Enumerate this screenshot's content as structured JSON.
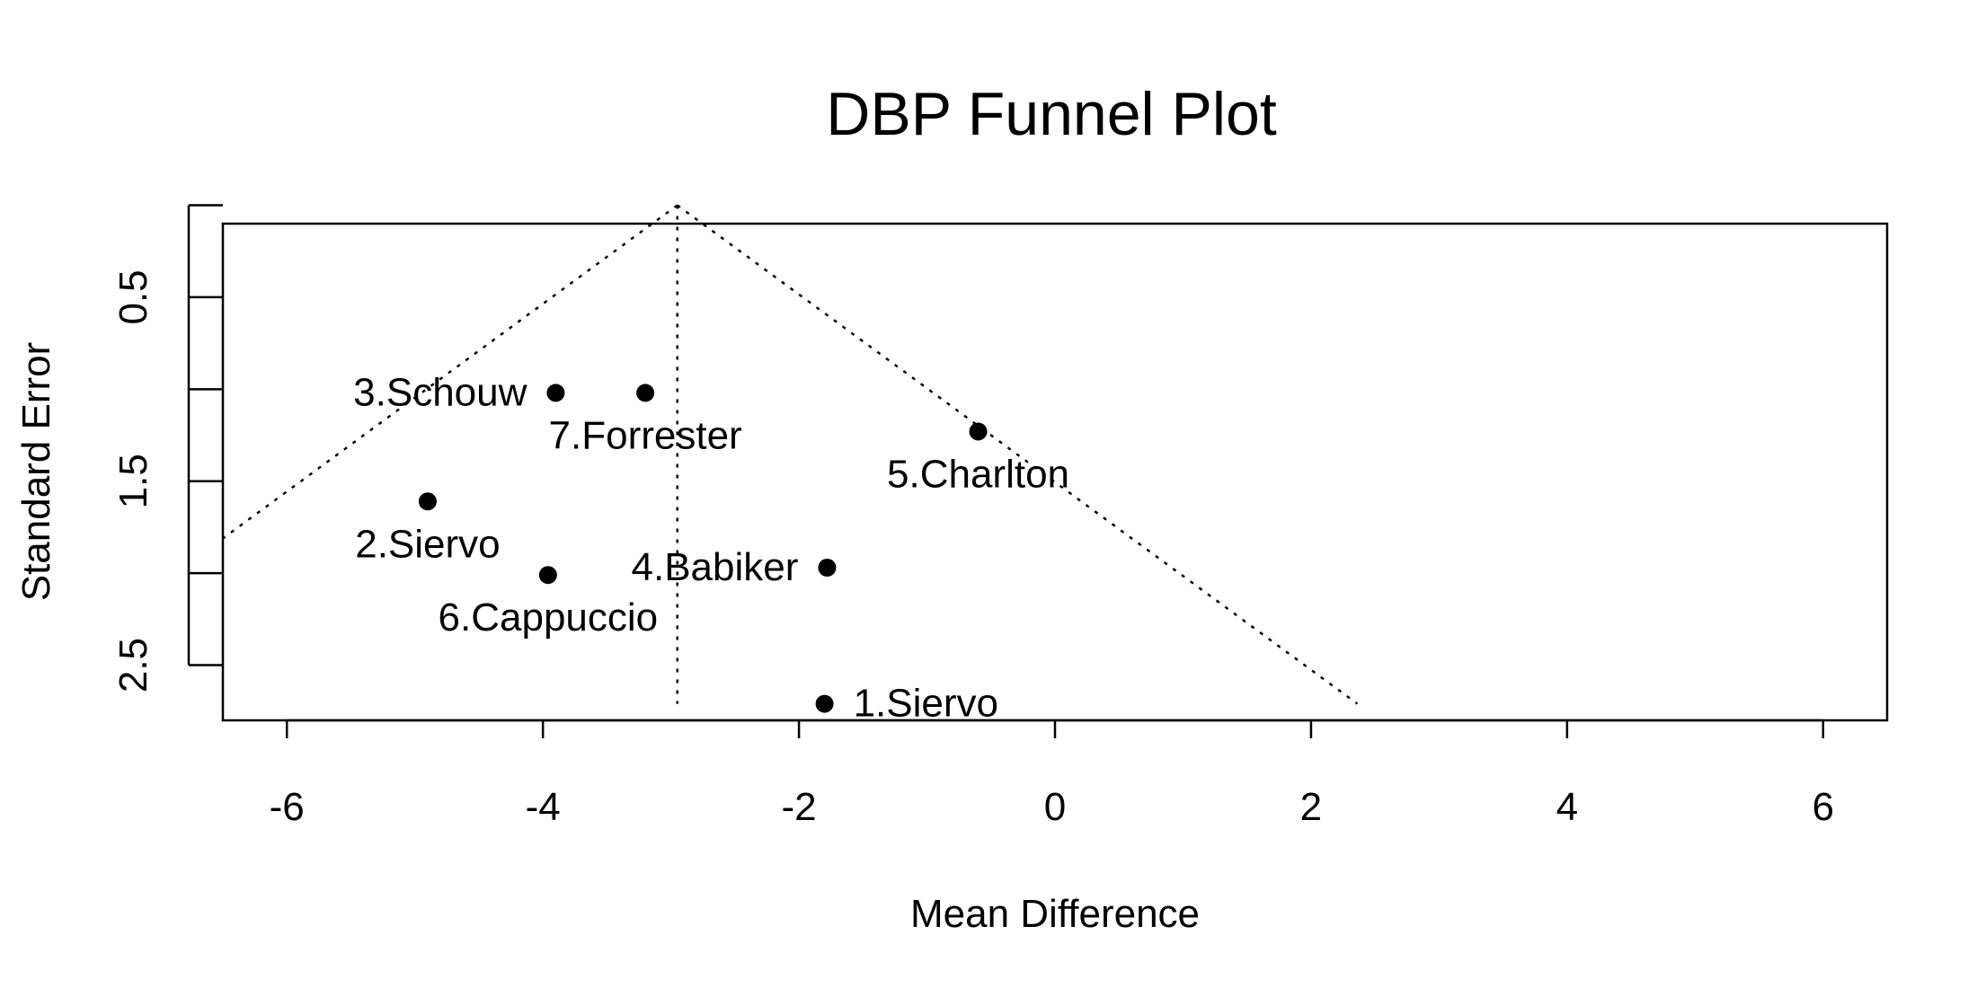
{
  "chart_data": {
    "type": "scatter",
    "title": "DBP Funnel Plot",
    "xlabel": "Mean Difference",
    "ylabel": "Standard Error",
    "xlim": [
      -6.5,
      6.5
    ],
    "ylim": [
      2.8,
      0.1
    ],
    "y_reversed": true,
    "xticks": [
      -6,
      -4,
      -2,
      0,
      2,
      4,
      6
    ],
    "yticks": [
      0.5,
      1.5,
      2.5
    ],
    "yticks_minor": [
      0,
      1,
      2
    ],
    "grid": false,
    "points": [
      {
        "label": "1.Siervo",
        "x": -1.8,
        "y": 2.71,
        "label_pos": "right"
      },
      {
        "label": "2.Siervo",
        "x": -4.9,
        "y": 1.61,
        "label_pos": "below"
      },
      {
        "label": "3.Schouw",
        "x": -3.9,
        "y": 1.02,
        "label_pos": "left"
      },
      {
        "label": "4.Babiker",
        "x": -1.78,
        "y": 1.97,
        "label_pos": "left"
      },
      {
        "label": "5.Charlton",
        "x": -0.6,
        "y": 1.23,
        "label_pos": "below"
      },
      {
        "label": "6.Cappuccio",
        "x": -3.96,
        "y": 2.01,
        "label_pos": "below"
      },
      {
        "label": "7.Forrester",
        "x": -3.2,
        "y": 1.02,
        "label_pos": "below"
      }
    ],
    "funnel": {
      "center": -2.95,
      "apex_se": 0,
      "max_se": 2.71,
      "z": 1.96,
      "style": "dotted"
    }
  }
}
